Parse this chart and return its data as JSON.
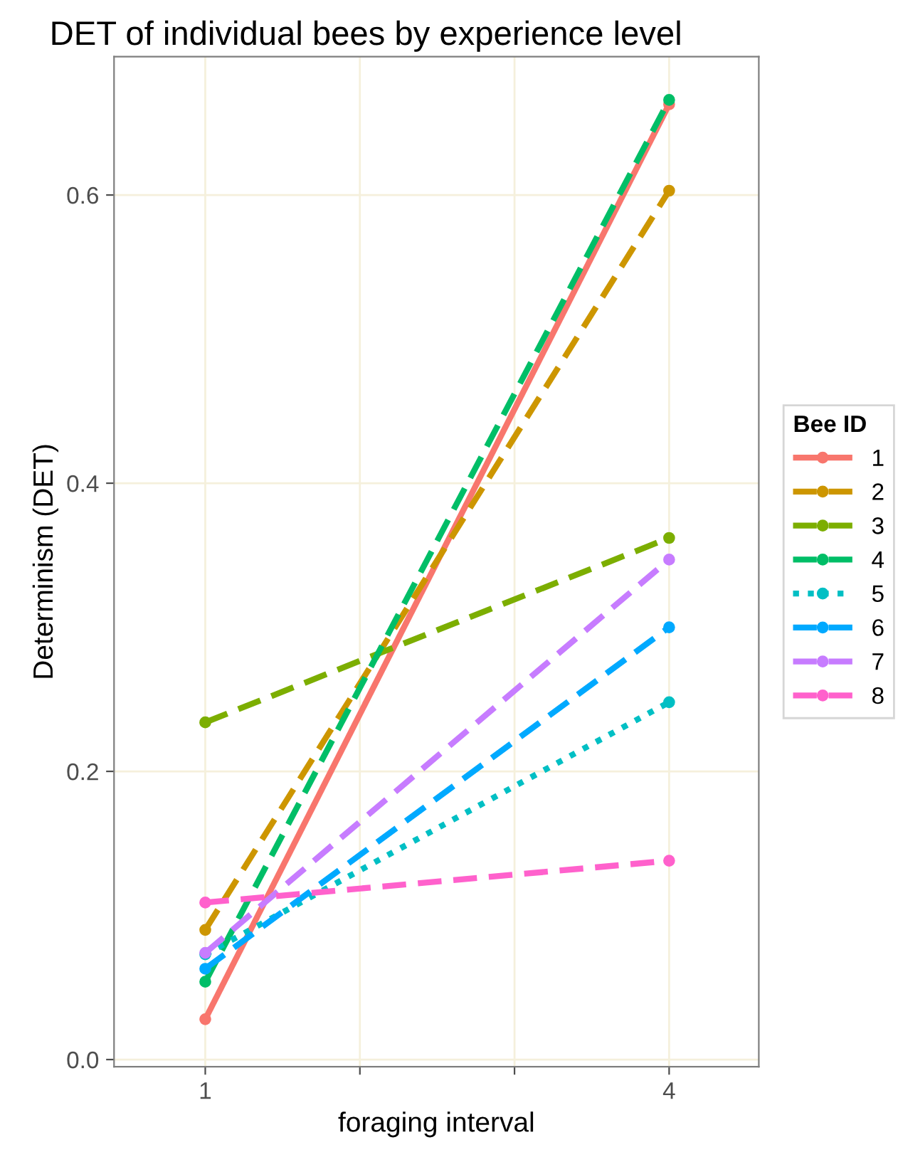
{
  "chart_data": {
    "type": "line",
    "title": "DET of individual bees by experience level",
    "xlabel": "foraging interval",
    "ylabel": "Determinism (DET)",
    "legend_title": "Bee ID",
    "x": [
      1,
      4
    ],
    "xlim": [
      0.41,
      4.58
    ],
    "xticks": [
      1,
      {
        "value": 2,
        "label": null
      },
      {
        "value": 3,
        "label": null
      },
      4
    ],
    "ylim": [
      -0.005,
      0.696
    ],
    "yticks": [
      {
        "value": 0,
        "label": "0.0"
      },
      0.2,
      0.4,
      0.6
    ],
    "grid": true,
    "legend": "right",
    "marker": "circle",
    "series": [
      {
        "name": "1",
        "color": "#f8766d",
        "values": [
          0.028,
          0.663
        ],
        "line_style": "solid"
      },
      {
        "name": "2",
        "color": "#cd9600",
        "values": [
          0.09,
          0.603
        ],
        "line_style": "dashed"
      },
      {
        "name": "3",
        "color": "#7cae00",
        "values": [
          0.234,
          0.362
        ],
        "line_style": "dashed"
      },
      {
        "name": "4",
        "color": "#00be67",
        "values": [
          0.054,
          0.666
        ],
        "line_style": "dashed"
      },
      {
        "name": "5",
        "color": "#00bfc4",
        "values": [
          0.073,
          0.248
        ],
        "line_style": "dotted"
      },
      {
        "name": "6",
        "color": "#00a9ff",
        "values": [
          0.063,
          0.3
        ],
        "line_style": "dashed"
      },
      {
        "name": "7",
        "color": "#c77cff",
        "values": [
          0.074,
          0.347
        ],
        "line_style": "dashed"
      },
      {
        "name": "8",
        "color": "#ff61cc",
        "values": [
          0.109,
          0.138
        ],
        "line_style": "dashed"
      }
    ]
  }
}
